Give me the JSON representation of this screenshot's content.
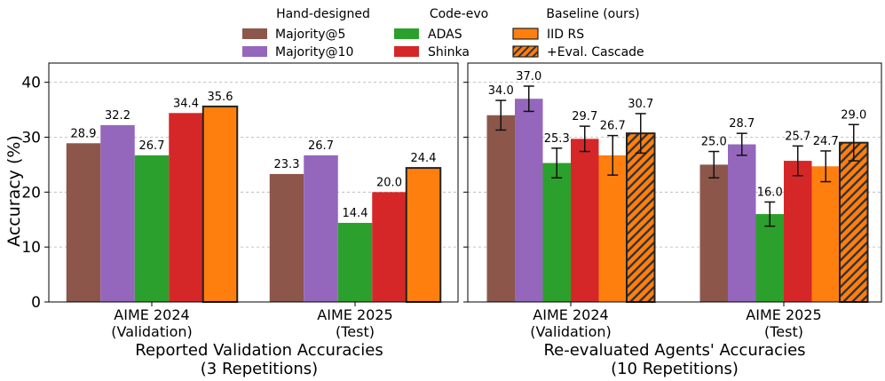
{
  "legend": {
    "groups": [
      {
        "title": "Hand-designed",
        "items": [
          {
            "key": "majority5",
            "label": "Majority@5"
          },
          {
            "key": "majority10",
            "label": "Majority@10"
          }
        ]
      },
      {
        "title": "Code-evo",
        "items": [
          {
            "key": "adas",
            "label": "ADAS"
          },
          {
            "key": "shinka",
            "label": "Shinka"
          }
        ]
      },
      {
        "title": "Baseline (ours)",
        "items": [
          {
            "key": "iidrs",
            "label": "IID RS"
          },
          {
            "key": "cascade",
            "label": "+Eval. Cascade"
          }
        ]
      }
    ]
  },
  "colors": {
    "majority5": "#8c564b",
    "majority10": "#9467bd",
    "adas": "#2ca02c",
    "shinka": "#d62728",
    "iidrs": "#ff7f0e",
    "cascade": "#ff7f0e"
  },
  "chart_data": [
    {
      "type": "bar",
      "title": "Reported Validation Accuracies",
      "subtitle": "(3 Repetitions)",
      "ylabel": "Accuracy (%)",
      "ylim": [
        0,
        43.5
      ],
      "yticks": [
        0,
        10,
        20,
        30,
        40
      ],
      "categories": [
        {
          "line1": "AIME 2024",
          "line2": "(Validation)"
        },
        {
          "line1": "AIME 2025",
          "line2": "(Test)"
        }
      ],
      "series": [
        {
          "key": "majority5",
          "name": "Majority@5",
          "values": [
            28.9,
            23.3
          ],
          "labels": [
            "28.9",
            "23.3"
          ]
        },
        {
          "key": "majority10",
          "name": "Majority@10",
          "values": [
            32.2,
            26.7
          ],
          "labels": [
            "32.2",
            "26.7"
          ]
        },
        {
          "key": "adas",
          "name": "ADAS",
          "values": [
            26.7,
            14.4
          ],
          "labels": [
            "26.7",
            "14.4"
          ]
        },
        {
          "key": "shinka",
          "name": "Shinka",
          "values": [
            34.4,
            20.0
          ],
          "labels": [
            "34.4",
            "20.0"
          ]
        },
        {
          "key": "iidrs",
          "name": "IID RS",
          "values": [
            35.6,
            24.4
          ],
          "labels": [
            "35.6",
            "24.4"
          ],
          "emphasis": true
        }
      ]
    },
    {
      "type": "bar",
      "title": "Re-evaluated Agents' Accuracies",
      "subtitle": "(10 Repetitions)",
      "ylabel": "",
      "ylim": [
        0,
        43.5
      ],
      "yticks": [
        0,
        10,
        20,
        30,
        40
      ],
      "categories": [
        {
          "line1": "AIME 2024",
          "line2": "(Validation)"
        },
        {
          "line1": "AIME 2025",
          "line2": "(Test)"
        }
      ],
      "series": [
        {
          "key": "majority5",
          "name": "Majority@5",
          "values": [
            34.0,
            25.0
          ],
          "errors": [
            2.7,
            2.4
          ],
          "labels": [
            "34.0",
            "25.0"
          ]
        },
        {
          "key": "majority10",
          "name": "Majority@10",
          "values": [
            37.0,
            28.7
          ],
          "errors": [
            2.3,
            2.0
          ],
          "labels": [
            "37.0",
            "28.7"
          ]
        },
        {
          "key": "adas",
          "name": "ADAS",
          "values": [
            25.3,
            16.0
          ],
          "errors": [
            2.7,
            2.2
          ],
          "labels": [
            "25.3",
            "16.0"
          ]
        },
        {
          "key": "shinka",
          "name": "Shinka",
          "values": [
            29.7,
            25.7
          ],
          "errors": [
            2.3,
            2.7
          ],
          "labels": [
            "29.7",
            "25.7"
          ]
        },
        {
          "key": "iidrs",
          "name": "IID RS",
          "values": [
            26.7,
            24.7
          ],
          "errors": [
            3.6,
            2.8
          ],
          "labels": [
            "26.7",
            "24.7"
          ]
        },
        {
          "key": "cascade",
          "name": "+Eval. Cascade",
          "values": [
            30.7,
            29.0
          ],
          "errors": [
            3.6,
            3.3
          ],
          "labels": [
            "30.7",
            "29.0"
          ],
          "hatched": true,
          "emphasis": true
        }
      ]
    }
  ]
}
